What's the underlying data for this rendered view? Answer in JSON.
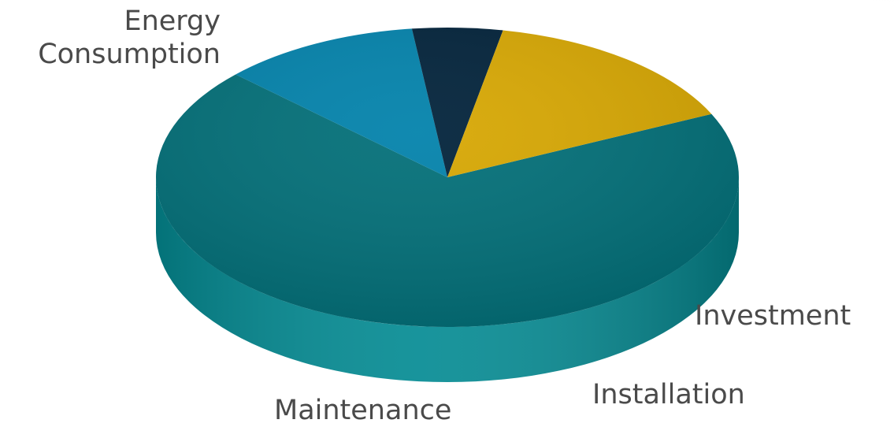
{
  "chart_data": {
    "type": "pie",
    "variant": "3d",
    "title": "",
    "legend": "none",
    "slices": [
      {
        "label": "Energy\nConsumption",
        "value": 69,
        "color": "#026f78",
        "side_color": "#048b93"
      },
      {
        "label": "Investment",
        "value": 11,
        "color": "#0282ab",
        "side_color": "#0296c2"
      },
      {
        "label": "Installation",
        "value": 5,
        "color": "#01223a",
        "side_color": "#022a45"
      },
      {
        "label": "Maintenance",
        "value": 15,
        "color": "#d7a702",
        "side_color": "#fcc800"
      }
    ]
  }
}
